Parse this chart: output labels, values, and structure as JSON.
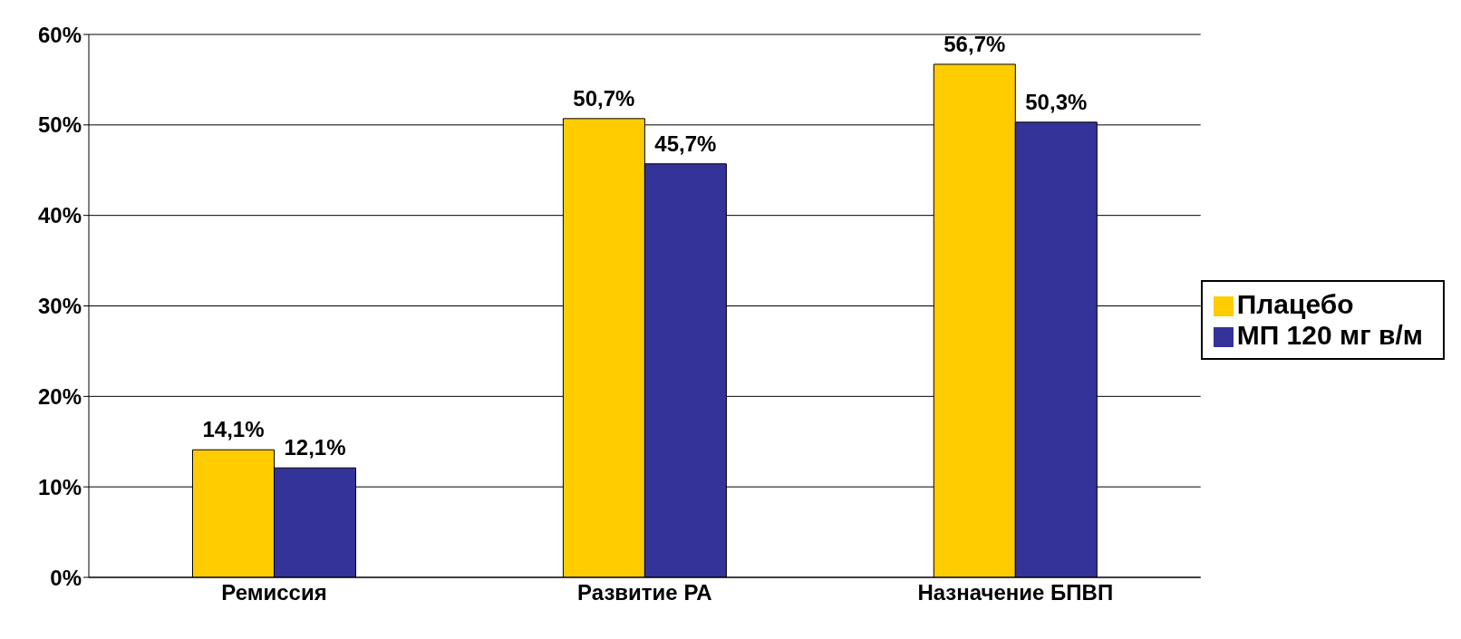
{
  "chart_data": {
    "type": "bar",
    "categories": [
      "Ремиссия",
      "Развитие РА",
      "Назначение БПВП"
    ],
    "series": [
      {
        "name": "Плацебо",
        "color": "#ffcc00",
        "values": [
          14.1,
          50.7,
          56.7
        ],
        "value_labels": [
          "14,1%",
          "50,7%",
          "56,7%"
        ]
      },
      {
        "name": "МП 120 мг в/м",
        "color": "#333399",
        "values": [
          12.1,
          45.7,
          50.3
        ],
        "value_labels": [
          "12,1%",
          "45,7%",
          "50,3%"
        ]
      }
    ],
    "ylim": [
      0,
      60
    ],
    "yticks": [
      {
        "value": 0,
        "label": "0%"
      },
      {
        "value": 10,
        "label": "10%"
      },
      {
        "value": 20,
        "label": "20%"
      },
      {
        "value": 30,
        "label": "30%"
      },
      {
        "value": 40,
        "label": "40%"
      },
      {
        "value": 50,
        "label": "50%"
      },
      {
        "value": 60,
        "label": "60%"
      }
    ],
    "grid": "y",
    "legend": "right"
  }
}
